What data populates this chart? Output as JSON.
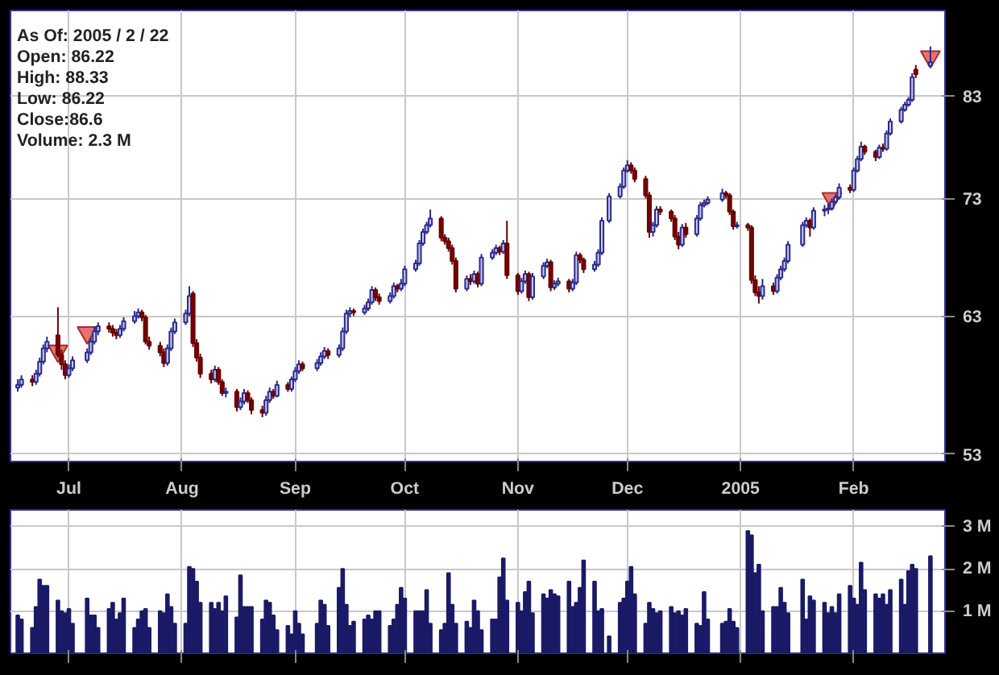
{
  "chart_data": [
    {
      "type": "candlestick",
      "log": "y",
      "grid": true,
      "annotations": [
        "As Of: 2005 / 2 / 22",
        "Open: 86.22",
        "High: 88.33",
        "Low: 86.22",
        "Close:86.6",
        "Volume: 2.3 M"
      ],
      "xlim": [
        "2004-06-15",
        "2005-02-26"
      ],
      "ylim": [
        52.5,
        92.4
      ],
      "xticks": [
        {
          "value": "2004-07-01",
          "label": "Jul"
        },
        {
          "value": "2004-08-01",
          "label": "Aug"
        },
        {
          "value": "2004-09-01",
          "label": "Sep"
        },
        {
          "value": "2004-10-01",
          "label": "Oct"
        },
        {
          "value": "2004-11-01",
          "label": "Nov"
        },
        {
          "value": "2004-12-01",
          "label": "Dec"
        },
        {
          "value": "2005-01-01",
          "label": "2005"
        },
        {
          "value": "2005-02-01",
          "label": "Feb"
        }
      ],
      "yticks": [
        53,
        63,
        73,
        83
      ],
      "x": [
        "2004-06-17",
        "2004-06-18",
        "2004-06-21",
        "2004-06-22",
        "2004-06-23",
        "2004-06-24",
        "2004-06-25",
        "2004-06-28",
        "2004-06-29",
        "2004-06-30",
        "2004-07-01",
        "2004-07-02",
        "2004-07-06",
        "2004-07-07",
        "2004-07-08",
        "2004-07-09",
        "2004-07-12",
        "2004-07-13",
        "2004-07-14",
        "2004-07-15",
        "2004-07-16",
        "2004-07-19",
        "2004-07-20",
        "2004-07-21",
        "2004-07-22",
        "2004-07-23",
        "2004-07-26",
        "2004-07-27",
        "2004-07-28",
        "2004-07-29",
        "2004-07-30",
        "2004-08-02",
        "2004-08-03",
        "2004-08-04",
        "2004-08-05",
        "2004-08-06",
        "2004-08-09",
        "2004-08-10",
        "2004-08-11",
        "2004-08-12",
        "2004-08-13",
        "2004-08-16",
        "2004-08-17",
        "2004-08-18",
        "2004-08-19",
        "2004-08-20",
        "2004-08-23",
        "2004-08-24",
        "2004-08-25",
        "2004-08-26",
        "2004-08-27",
        "2004-08-30",
        "2004-08-31",
        "2004-09-01",
        "2004-09-02",
        "2004-09-03",
        "2004-09-07",
        "2004-09-08",
        "2004-09-09",
        "2004-09-10",
        "2004-09-13",
        "2004-09-14",
        "2004-09-15",
        "2004-09-16",
        "2004-09-17",
        "2004-09-20",
        "2004-09-21",
        "2004-09-22",
        "2004-09-23",
        "2004-09-24",
        "2004-09-27",
        "2004-09-28",
        "2004-09-29",
        "2004-09-30",
        "2004-10-01",
        "2004-10-04",
        "2004-10-05",
        "2004-10-06",
        "2004-10-07",
        "2004-10-08",
        "2004-10-11",
        "2004-10-12",
        "2004-10-13",
        "2004-10-14",
        "2004-10-15",
        "2004-10-18",
        "2004-10-19",
        "2004-10-20",
        "2004-10-21",
        "2004-10-22",
        "2004-10-25",
        "2004-10-26",
        "2004-10-27",
        "2004-10-28",
        "2004-10-29",
        "2004-11-01",
        "2004-11-02",
        "2004-11-03",
        "2004-11-04",
        "2004-11-05",
        "2004-11-08",
        "2004-11-09",
        "2004-11-10",
        "2004-11-11",
        "2004-11-12",
        "2004-11-15",
        "2004-11-16",
        "2004-11-17",
        "2004-11-18",
        "2004-11-19",
        "2004-11-22",
        "2004-11-23",
        "2004-11-24",
        "2004-11-26",
        "2004-11-29",
        "2004-11-30",
        "2004-12-01",
        "2004-12-02",
        "2004-12-03",
        "2004-12-06",
        "2004-12-07",
        "2004-12-08",
        "2004-12-09",
        "2004-12-10",
        "2004-12-13",
        "2004-12-14",
        "2004-12-15",
        "2004-12-16",
        "2004-12-17",
        "2004-12-20",
        "2004-12-21",
        "2004-12-22",
        "2004-12-23",
        "2004-12-27",
        "2004-12-28",
        "2004-12-29",
        "2004-12-30",
        "2004-12-31",
        "2005-01-03",
        "2005-01-04",
        "2005-01-05",
        "2005-01-06",
        "2005-01-07",
        "2005-01-10",
        "2005-01-11",
        "2005-01-12",
        "2005-01-13",
        "2005-01-14",
        "2005-01-18",
        "2005-01-19",
        "2005-01-20",
        "2005-01-21",
        "2005-01-24",
        "2005-01-25",
        "2005-01-26",
        "2005-01-27",
        "2005-01-28",
        "2005-01-31",
        "2005-02-01",
        "2005-02-02",
        "2005-02-03",
        "2005-02-04",
        "2005-02-07",
        "2005-02-08",
        "2005-02-09",
        "2005-02-10",
        "2005-02-11",
        "2005-02-14",
        "2005-02-15",
        "2005-02-16",
        "2005-02-17",
        "2005-02-18",
        "2005-02-22"
      ],
      "ohlc": [
        [
          57.6,
          58.2,
          57.3,
          57.8
        ],
        [
          57.8,
          58.5,
          57.6,
          58.2
        ],
        [
          58.2,
          58.5,
          57.7,
          58.0
        ],
        [
          58.0,
          58.9,
          57.8,
          58.6
        ],
        [
          58.6,
          59.8,
          58.4,
          59.5
        ],
        [
          59.5,
          60.8,
          59.3,
          60.5
        ],
        [
          60.5,
          61.4,
          60.2,
          61.0
        ],
        [
          61.5,
          63.7,
          59.8,
          60.0
        ],
        [
          60.0,
          60.4,
          58.9,
          59.3
        ],
        [
          59.3,
          59.6,
          58.2,
          58.5
        ],
        [
          58.5,
          59.3,
          58.3,
          59.0
        ],
        [
          59.0,
          59.9,
          58.8,
          59.6
        ],
        [
          59.6,
          60.5,
          59.4,
          60.2
        ],
        [
          60.2,
          61.3,
          60.0,
          61.0
        ],
        [
          61.0,
          62.2,
          60.8,
          61.8
        ],
        [
          61.8,
          62.5,
          61.5,
          62.2
        ],
        [
          62.2,
          62.5,
          61.7,
          62.0
        ],
        [
          62.0,
          62.3,
          61.4,
          61.7
        ],
        [
          61.7,
          62.0,
          61.2,
          61.5
        ],
        [
          61.5,
          62.3,
          61.3,
          62.0
        ],
        [
          62.0,
          62.9,
          61.8,
          62.6
        ],
        [
          62.6,
          63.4,
          62.4,
          63.0
        ],
        [
          63.0,
          63.6,
          62.8,
          63.3
        ],
        [
          63.3,
          63.5,
          62.6,
          62.9
        ],
        [
          62.9,
          63.1,
          60.8,
          61.0
        ],
        [
          61.0,
          61.4,
          60.4,
          60.7
        ],
        [
          60.7,
          61.0,
          59.9,
          60.2
        ],
        [
          60.2,
          60.5,
          59.1,
          59.4
        ],
        [
          59.4,
          60.8,
          59.2,
          60.5
        ],
        [
          60.5,
          62.1,
          60.3,
          61.8
        ],
        [
          61.8,
          62.8,
          61.6,
          62.5
        ],
        [
          62.5,
          63.5,
          62.3,
          63.2
        ],
        [
          63.2,
          65.4,
          63.0,
          64.6
        ],
        [
          64.8,
          65.0,
          60.6,
          60.9
        ],
        [
          60.9,
          61.2,
          59.5,
          59.8
        ],
        [
          59.8,
          60.1,
          58.3,
          58.6
        ],
        [
          58.6,
          58.9,
          57.9,
          58.2
        ],
        [
          58.2,
          59.2,
          58.0,
          58.9
        ],
        [
          58.9,
          59.1,
          57.8,
          58.0
        ],
        [
          58.0,
          58.2,
          57.0,
          57.2
        ],
        [
          57.2,
          57.6,
          56.9,
          57.3
        ],
        [
          57.3,
          57.5,
          55.9,
          56.2
        ],
        [
          56.2,
          56.9,
          56.0,
          56.6
        ],
        [
          56.6,
          57.5,
          56.4,
          57.2
        ],
        [
          57.2,
          57.4,
          56.5,
          56.7
        ],
        [
          56.7,
          56.9,
          55.7,
          56.0
        ],
        [
          56.0,
          56.3,
          55.5,
          55.8
        ],
        [
          55.8,
          57.0,
          55.6,
          56.7
        ],
        [
          56.7,
          57.6,
          56.5,
          57.3
        ],
        [
          57.3,
          57.5,
          56.8,
          57.0
        ],
        [
          57.0,
          58.1,
          56.9,
          57.8
        ],
        [
          57.8,
          58.0,
          57.3,
          57.5
        ],
        [
          57.5,
          58.4,
          57.3,
          58.2
        ],
        [
          58.2,
          59.1,
          58.0,
          58.8
        ],
        [
          58.8,
          59.6,
          58.6,
          59.3
        ],
        [
          59.3,
          59.5,
          58.8,
          59.0
        ],
        [
          59.0,
          59.7,
          58.8,
          59.4
        ],
        [
          59.4,
          60.2,
          59.2,
          59.9
        ],
        [
          59.9,
          60.6,
          59.7,
          60.3
        ],
        [
          60.3,
          60.5,
          59.7,
          60.0
        ],
        [
          60.0,
          60.8,
          59.8,
          60.5
        ],
        [
          60.5,
          62.1,
          60.3,
          61.8
        ],
        [
          61.8,
          63.5,
          61.6,
          63.2
        ],
        [
          63.2,
          63.7,
          62.9,
          63.4
        ],
        [
          63.4,
          63.6,
          63.0,
          63.3
        ],
        [
          63.3,
          63.9,
          63.1,
          63.6
        ],
        [
          63.6,
          64.4,
          63.4,
          64.1
        ],
        [
          64.1,
          65.4,
          63.9,
          65.1
        ],
        [
          65.1,
          65.3,
          64.2,
          64.5
        ],
        [
          64.5,
          64.8,
          63.9,
          64.2
        ],
        [
          64.2,
          64.9,
          64.0,
          64.6
        ],
        [
          64.6,
          65.7,
          64.4,
          65.4
        ],
        [
          65.4,
          65.6,
          64.9,
          65.2
        ],
        [
          65.2,
          66.0,
          65.0,
          65.6
        ],
        [
          65.6,
          67.1,
          65.4,
          66.8
        ],
        [
          66.8,
          67.6,
          66.6,
          67.3
        ],
        [
          67.3,
          69.3,
          67.1,
          69.0
        ],
        [
          69.0,
          70.3,
          68.8,
          70.0
        ],
        [
          70.0,
          70.9,
          69.8,
          70.6
        ],
        [
          70.6,
          72.0,
          70.4,
          71.2
        ],
        [
          71.2,
          71.4,
          69.2,
          69.5
        ],
        [
          69.5,
          69.8,
          68.9,
          69.2
        ],
        [
          69.2,
          69.5,
          68.3,
          68.6
        ],
        [
          68.6,
          68.9,
          67.2,
          67.5
        ],
        [
          67.5,
          67.8,
          64.9,
          65.2
        ],
        [
          65.2,
          66.3,
          65.0,
          66.0
        ],
        [
          66.0,
          66.4,
          65.5,
          65.8
        ],
        [
          65.8,
          66.7,
          65.6,
          66.4
        ],
        [
          66.4,
          66.6,
          65.3,
          65.6
        ],
        [
          65.6,
          68.1,
          65.4,
          67.8
        ],
        [
          67.8,
          68.5,
          67.6,
          68.2
        ],
        [
          68.2,
          68.9,
          68.0,
          68.6
        ],
        [
          68.6,
          68.8,
          68.0,
          68.3
        ],
        [
          68.3,
          69.3,
          68.1,
          69.0
        ],
        [
          69.0,
          71.0,
          66.0,
          66.3
        ],
        [
          66.3,
          66.5,
          64.7,
          65.0
        ],
        [
          65.0,
          66.1,
          64.8,
          65.8
        ],
        [
          65.8,
          66.7,
          65.6,
          66.4
        ],
        [
          66.4,
          66.6,
          64.2,
          64.5
        ],
        [
          64.5,
          66.5,
          64.3,
          66.2
        ],
        [
          66.2,
          67.4,
          66.0,
          67.1
        ],
        [
          67.1,
          67.7,
          66.9,
          67.4
        ],
        [
          67.4,
          67.6,
          65.0,
          65.3
        ],
        [
          65.3,
          65.9,
          65.1,
          65.6
        ],
        [
          65.6,
          66.1,
          65.4,
          65.8
        ],
        [
          65.8,
          66.0,
          64.9,
          65.2
        ],
        [
          65.2,
          66.0,
          65.0,
          65.7
        ],
        [
          65.7,
          68.3,
          65.5,
          68.0
        ],
        [
          68.0,
          68.2,
          67.3,
          67.6
        ],
        [
          67.6,
          67.8,
          66.5,
          66.8
        ],
        [
          66.8,
          67.5,
          66.6,
          67.2
        ],
        [
          67.2,
          68.5,
          67.0,
          68.2
        ],
        [
          68.2,
          71.3,
          68.0,
          71.0
        ],
        [
          71.0,
          73.5,
          70.8,
          73.2
        ],
        [
          73.2,
          74.4,
          73.0,
          74.1
        ],
        [
          74.1,
          75.9,
          73.9,
          75.6
        ],
        [
          75.6,
          76.6,
          75.4,
          76.1
        ],
        [
          76.1,
          76.4,
          75.3,
          75.6
        ],
        [
          75.6,
          75.9,
          74.5,
          74.8
        ],
        [
          74.8,
          75.1,
          73.0,
          73.3
        ],
        [
          73.3,
          73.6,
          69.5,
          70.0
        ],
        [
          70.0,
          70.9,
          69.6,
          70.6
        ],
        [
          70.6,
          72.3,
          70.4,
          72.0
        ],
        [
          72.0,
          72.3,
          71.5,
          71.8
        ],
        [
          71.8,
          72.0,
          70.9,
          71.2
        ],
        [
          71.2,
          71.5,
          69.3,
          69.6
        ],
        [
          69.6,
          70.0,
          68.5,
          68.9
        ],
        [
          68.9,
          70.7,
          68.7,
          70.4
        ],
        [
          70.4,
          70.8,
          69.5,
          69.8
        ],
        [
          69.8,
          71.5,
          69.6,
          71.2
        ],
        [
          71.2,
          72.7,
          71.0,
          72.4
        ],
        [
          72.4,
          72.9,
          72.2,
          72.6
        ],
        [
          72.6,
          73.2,
          72.4,
          72.9
        ],
        [
          72.9,
          73.9,
          72.7,
          73.5
        ],
        [
          73.5,
          73.7,
          73.0,
          73.3
        ],
        [
          73.3,
          73.5,
          71.5,
          71.8
        ],
        [
          71.8,
          72.0,
          70.2,
          70.5
        ],
        [
          70.5,
          70.9,
          70.3,
          70.6
        ],
        [
          70.6,
          70.8,
          70.1,
          70.4
        ],
        [
          70.4,
          70.6,
          65.6,
          65.9
        ],
        [
          65.9,
          66.3,
          64.6,
          64.9
        ],
        [
          64.9,
          65.4,
          64.0,
          64.6
        ],
        [
          64.6,
          66.0,
          64.3,
          65.4
        ],
        [
          65.4,
          65.7,
          64.7,
          65.0
        ],
        [
          65.0,
          66.4,
          64.8,
          66.1
        ],
        [
          66.1,
          67.1,
          65.9,
          66.8
        ],
        [
          66.8,
          67.8,
          66.6,
          67.5
        ],
        [
          67.5,
          69.2,
          67.3,
          68.9
        ],
        [
          68.9,
          70.9,
          68.7,
          70.6
        ],
        [
          70.6,
          71.3,
          70.4,
          71.0
        ],
        [
          71.0,
          71.2,
          69.6,
          70.4
        ],
        [
          70.4,
          72.2,
          70.2,
          71.9
        ],
        [
          71.9,
          72.4,
          71.4,
          72.0
        ],
        [
          72.0,
          72.5,
          71.6,
          72.1
        ],
        [
          72.1,
          73.0,
          71.9,
          72.7
        ],
        [
          72.7,
          73.4,
          72.5,
          73.1
        ],
        [
          73.1,
          74.4,
          72.9,
          74.0
        ],
        [
          74.0,
          74.3,
          73.5,
          73.8
        ],
        [
          73.8,
          75.9,
          73.6,
          75.6
        ],
        [
          75.6,
          77.0,
          75.4,
          76.7
        ],
        [
          76.7,
          78.4,
          76.5,
          77.9
        ],
        [
          77.9,
          78.1,
          77.1,
          77.4
        ],
        [
          77.4,
          77.6,
          76.5,
          76.9
        ],
        [
          76.9,
          78.1,
          76.7,
          77.8
        ],
        [
          77.8,
          78.2,
          77.4,
          77.7
        ],
        [
          77.7,
          79.5,
          77.5,
          79.2
        ],
        [
          79.2,
          80.7,
          79.0,
          80.4
        ],
        [
          80.4,
          81.9,
          80.2,
          81.6
        ],
        [
          81.6,
          82.4,
          81.4,
          82.1
        ],
        [
          82.1,
          82.9,
          81.9,
          82.6
        ],
        [
          82.6,
          85.4,
          82.4,
          85.0
        ],
        [
          85.8,
          86.3,
          84.9,
          85.3
        ],
        [
          86.22,
          88.33,
          86.22,
          86.6
        ]
      ],
      "series": [
        {
          "type": "scatter",
          "marker": "triangle",
          "color": "#e87070",
          "x": [
            "2004-06-28",
            "2004-07-06",
            "2005-01-26",
            "2005-02-22"
          ],
          "values": [
            60.3,
            61.7,
            73.0,
            87.2
          ]
        }
      ]
    },
    {
      "type": "bar",
      "color": "#1a1a66",
      "grid": true,
      "tick_labels": "y",
      "xlim": [
        "2004-06-15",
        "2005-02-26"
      ],
      "ylim": [
        0,
        3.4
      ],
      "xticks": [
        {
          "value": "2004-07-01",
          "label": null
        },
        {
          "value": "2004-08-01",
          "label": null
        },
        {
          "value": "2004-09-01",
          "label": null
        },
        {
          "value": "2004-10-01",
          "label": null
        },
        {
          "value": "2004-11-01",
          "label": null
        },
        {
          "value": "2004-12-01",
          "label": null
        },
        {
          "value": "2005-01-01",
          "label": null
        },
        {
          "value": "2005-02-01",
          "label": null
        }
      ],
      "yticks": [
        {
          "value": 1,
          "label": "1 M"
        },
        {
          "value": 2,
          "label": "2 M"
        },
        {
          "value": 3,
          "label": "3 M"
        }
      ],
      "x": [
        "2004-06-17",
        "2004-06-18",
        "2004-06-21",
        "2004-06-22",
        "2004-06-23",
        "2004-06-24",
        "2004-06-25",
        "2004-06-28",
        "2004-06-29",
        "2004-06-30",
        "2004-07-01",
        "2004-07-02",
        "2004-07-06",
        "2004-07-07",
        "2004-07-08",
        "2004-07-09",
        "2004-07-12",
        "2004-07-13",
        "2004-07-14",
        "2004-07-15",
        "2004-07-16",
        "2004-07-19",
        "2004-07-20",
        "2004-07-21",
        "2004-07-22",
        "2004-07-23",
        "2004-07-26",
        "2004-07-27",
        "2004-07-28",
        "2004-07-29",
        "2004-07-30",
        "2004-08-02",
        "2004-08-03",
        "2004-08-04",
        "2004-08-05",
        "2004-08-06",
        "2004-08-09",
        "2004-08-10",
        "2004-08-11",
        "2004-08-12",
        "2004-08-13",
        "2004-08-16",
        "2004-08-17",
        "2004-08-18",
        "2004-08-19",
        "2004-08-20",
        "2004-08-23",
        "2004-08-24",
        "2004-08-25",
        "2004-08-26",
        "2004-08-27",
        "2004-08-30",
        "2004-08-31",
        "2004-09-01",
        "2004-09-02",
        "2004-09-03",
        "2004-09-07",
        "2004-09-08",
        "2004-09-09",
        "2004-09-10",
        "2004-09-13",
        "2004-09-14",
        "2004-09-15",
        "2004-09-16",
        "2004-09-17",
        "2004-09-20",
        "2004-09-21",
        "2004-09-22",
        "2004-09-23",
        "2004-09-24",
        "2004-09-27",
        "2004-09-28",
        "2004-09-29",
        "2004-09-30",
        "2004-10-01",
        "2004-10-04",
        "2004-10-05",
        "2004-10-06",
        "2004-10-07",
        "2004-10-08",
        "2004-10-11",
        "2004-10-12",
        "2004-10-13",
        "2004-10-14",
        "2004-10-15",
        "2004-10-18",
        "2004-10-19",
        "2004-10-20",
        "2004-10-21",
        "2004-10-22",
        "2004-10-25",
        "2004-10-26",
        "2004-10-27",
        "2004-10-28",
        "2004-10-29",
        "2004-11-01",
        "2004-11-02",
        "2004-11-03",
        "2004-11-04",
        "2004-11-05",
        "2004-11-08",
        "2004-11-09",
        "2004-11-10",
        "2004-11-11",
        "2004-11-12",
        "2004-11-15",
        "2004-11-16",
        "2004-11-17",
        "2004-11-18",
        "2004-11-19",
        "2004-11-22",
        "2004-11-23",
        "2004-11-24",
        "2004-11-26",
        "2004-11-29",
        "2004-11-30",
        "2004-12-01",
        "2004-12-02",
        "2004-12-03",
        "2004-12-06",
        "2004-12-07",
        "2004-12-08",
        "2004-12-09",
        "2004-12-10",
        "2004-12-13",
        "2004-12-14",
        "2004-12-15",
        "2004-12-16",
        "2004-12-17",
        "2004-12-20",
        "2004-12-21",
        "2004-12-22",
        "2004-12-23",
        "2004-12-27",
        "2004-12-28",
        "2004-12-29",
        "2004-12-30",
        "2004-12-31",
        "2005-01-03",
        "2005-01-04",
        "2005-01-05",
        "2005-01-06",
        "2005-01-07",
        "2005-01-10",
        "2005-01-11",
        "2005-01-12",
        "2005-01-13",
        "2005-01-14",
        "2005-01-18",
        "2005-01-19",
        "2005-01-20",
        "2005-01-21",
        "2005-01-24",
        "2005-01-25",
        "2005-01-26",
        "2005-01-27",
        "2005-01-28",
        "2005-01-31",
        "2005-02-01",
        "2005-02-02",
        "2005-02-03",
        "2005-02-04",
        "2005-02-07",
        "2005-02-08",
        "2005-02-09",
        "2005-02-10",
        "2005-02-11",
        "2005-02-14",
        "2005-02-15",
        "2005-02-16",
        "2005-02-17",
        "2005-02-18",
        "2005-02-22"
      ],
      "values": [
        0.9,
        0.8,
        0.6,
        1.1,
        1.75,
        1.6,
        1.6,
        1.25,
        1.0,
        0.95,
        1.05,
        0.7,
        1.3,
        0.9,
        0.9,
        0.6,
        1.05,
        1.2,
        0.8,
        0.95,
        1.3,
        0.6,
        0.8,
        1.0,
        1.05,
        0.6,
        1.0,
        0.95,
        1.4,
        1.1,
        0.7,
        0.7,
        2.05,
        2.0,
        1.7,
        1.2,
        1.2,
        1.05,
        1.2,
        1.0,
        1.35,
        0.85,
        1.85,
        1.1,
        1.1,
        1.1,
        0.8,
        1.25,
        1.2,
        0.9,
        0.55,
        0.65,
        0.45,
        1.0,
        0.7,
        0.45,
        0.7,
        1.25,
        1.15,
        0.65,
        1.55,
        2.0,
        1.15,
        0.65,
        0.75,
        0.8,
        0.9,
        0.8,
        1.0,
        1.0,
        0.65,
        0.8,
        1.15,
        1.55,
        1.3,
        1.0,
        1.0,
        1.0,
        1.5,
        0.7,
        0.55,
        0.7,
        1.9,
        1.15,
        0.7,
        0.75,
        0.6,
        1.25,
        1.0,
        0.55,
        0.8,
        0.8,
        1.8,
        2.25,
        1.25,
        1.2,
        1.0,
        1.45,
        1.7,
        0.95,
        1.4,
        1.3,
        1.5,
        1.4,
        1.35,
        1.7,
        1.1,
        1.2,
        1.55,
        2.2,
        1.7,
        1.0,
        1.05,
        0.4,
        1.2,
        1.3,
        1.7,
        2.05,
        1.4,
        0.7,
        1.2,
        1.05,
        0.95,
        1.0,
        1.1,
        0.95,
        1.0,
        0.9,
        1.05,
        0.7,
        0.65,
        1.45,
        0.8,
        0.7,
        0.75,
        1.05,
        0.75,
        0.6,
        2.9,
        2.8,
        1.9,
        2.1,
        1.0,
        1.1,
        1.1,
        1.55,
        1.2,
        0.95,
        1.75,
        0.8,
        1.35,
        1.25,
        1.2,
        0.95,
        1.1,
        0.95,
        1.4,
        1.6,
        1.3,
        1.15,
        2.15,
        1.5,
        1.4,
        1.3,
        1.4,
        1.15,
        1.5,
        1.75,
        1.15,
        1.95,
        2.1,
        2.0,
        2.3
      ]
    }
  ]
}
